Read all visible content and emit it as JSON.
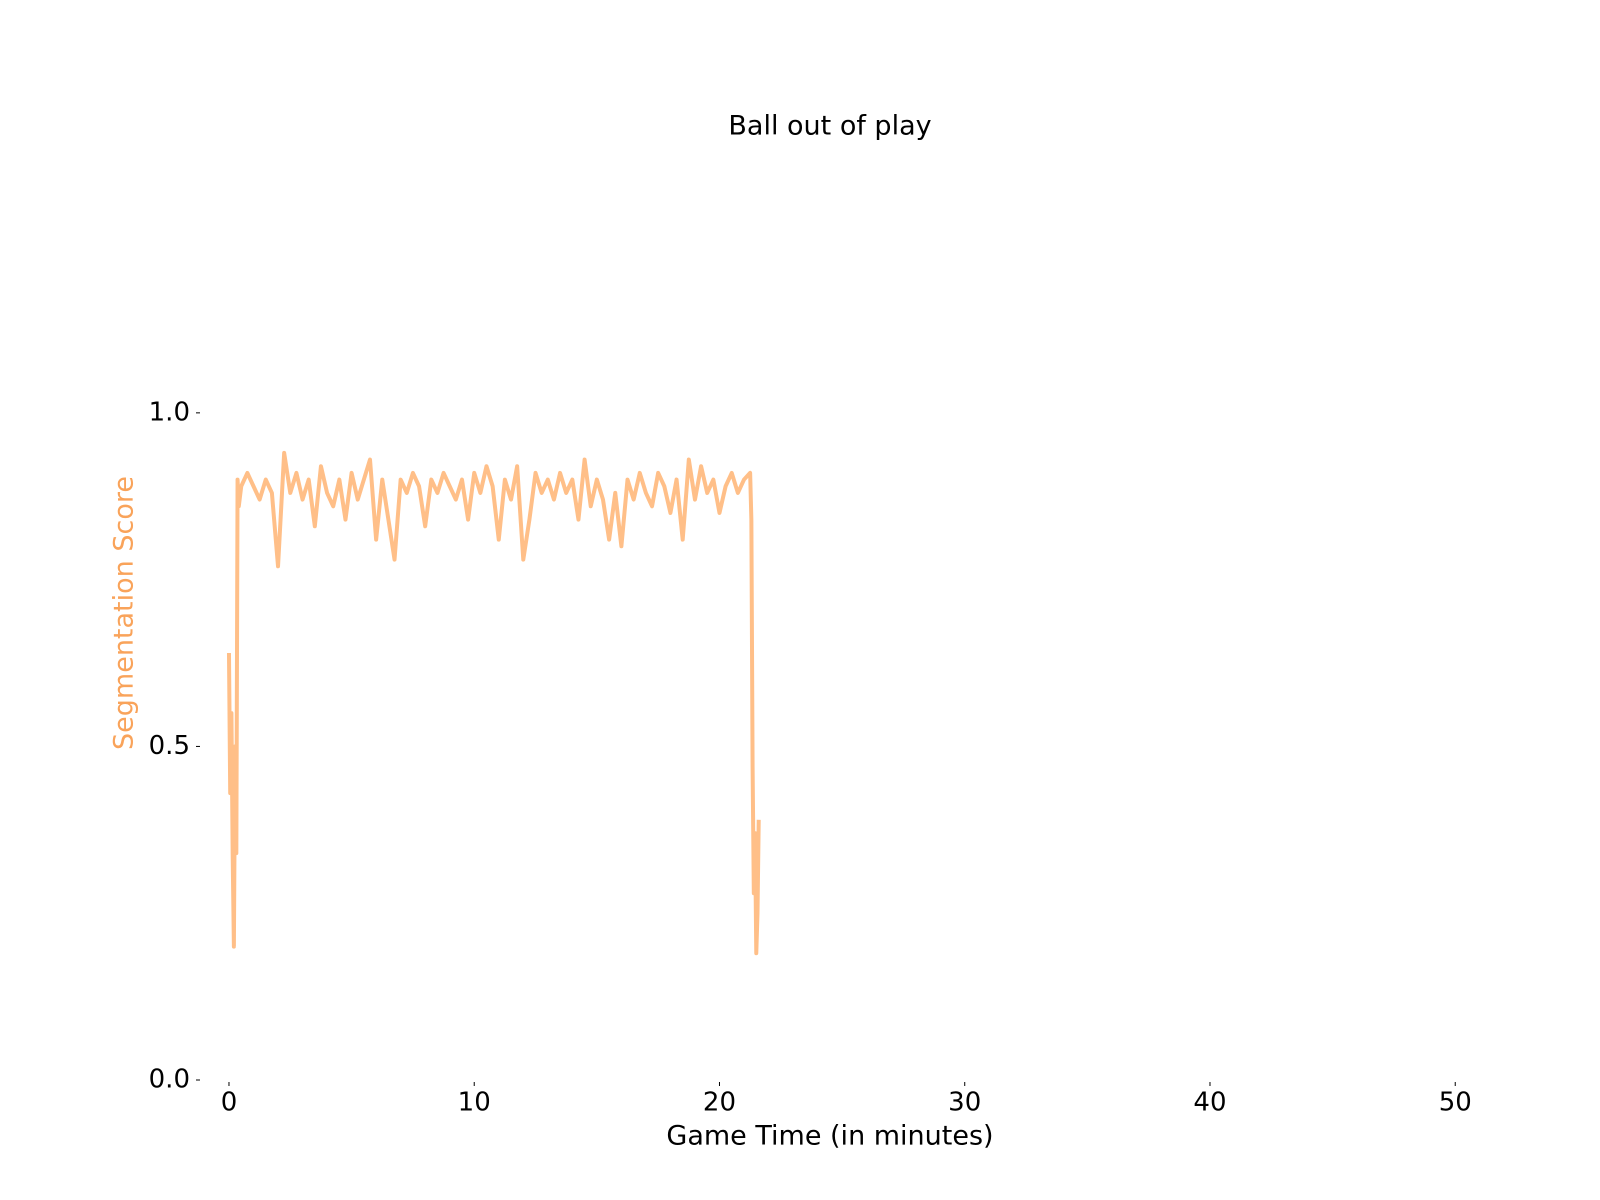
{
  "chart_data": {
    "type": "line",
    "title": "Ball out of play",
    "xlabel": "Game Time (in minutes)",
    "ylabel": "Segmentation Score",
    "ylabel_color": "#f9a35a",
    "xlim": [
      -1.1,
      52.6
    ],
    "xticks": [
      0,
      10,
      20,
      30,
      40,
      50
    ],
    "ylim": [
      0,
      1.4
    ],
    "yticks": [
      {
        "value": 0,
        "label": "0.0"
      },
      {
        "value": 0.5,
        "label": "0.5"
      },
      {
        "value": 1,
        "label": "1.0"
      }
    ],
    "grid": false,
    "x": [
      0,
      0.05,
      0.1,
      0.15,
      0.2,
      0.25,
      0.3,
      0.35,
      0.4,
      0.5,
      0.75,
      1.0,
      1.25,
      1.5,
      1.75,
      2.0,
      2.25,
      2.5,
      2.75,
      3.0,
      3.25,
      3.5,
      3.75,
      4.0,
      4.25,
      4.5,
      4.75,
      5.0,
      5.25,
      5.5,
      5.75,
      6.0,
      6.25,
      6.5,
      6.75,
      7.0,
      7.25,
      7.5,
      7.75,
      8.0,
      8.25,
      8.5,
      8.75,
      9.0,
      9.25,
      9.5,
      9.75,
      10.0,
      10.25,
      10.5,
      10.75,
      11.0,
      11.25,
      11.5,
      11.75,
      12.0,
      12.25,
      12.5,
      12.75,
      13.0,
      13.25,
      13.5,
      13.75,
      14.0,
      14.25,
      14.5,
      14.75,
      15.0,
      15.25,
      15.5,
      15.75,
      16.0,
      16.25,
      16.5,
      16.75,
      17.0,
      17.25,
      17.5,
      17.75,
      18.0,
      18.25,
      18.5,
      18.75,
      19.0,
      19.25,
      19.5,
      19.75,
      20.0,
      20.25,
      20.5,
      20.75,
      21.0,
      21.25,
      21.3,
      21.35,
      21.4,
      21.45,
      21.5,
      21.55,
      21.6
    ],
    "series": [
      {
        "name": "Segmentation Score",
        "color": "#ffbf88",
        "values": [
          0.64,
          0.43,
          0.55,
          0.34,
          0.2,
          0.5,
          0.34,
          0.9,
          0.86,
          0.89,
          0.91,
          0.89,
          0.87,
          0.9,
          0.88,
          0.77,
          0.94,
          0.88,
          0.91,
          0.87,
          0.9,
          0.83,
          0.92,
          0.88,
          0.86,
          0.9,
          0.84,
          0.91,
          0.87,
          0.9,
          0.93,
          0.81,
          0.9,
          0.84,
          0.78,
          0.9,
          0.88,
          0.91,
          0.89,
          0.83,
          0.9,
          0.88,
          0.91,
          0.89,
          0.87,
          0.9,
          0.84,
          0.91,
          0.88,
          0.92,
          0.89,
          0.81,
          0.9,
          0.87,
          0.92,
          0.78,
          0.84,
          0.91,
          0.88,
          0.9,
          0.87,
          0.91,
          0.88,
          0.9,
          0.84,
          0.93,
          0.86,
          0.9,
          0.87,
          0.81,
          0.88,
          0.8,
          0.9,
          0.87,
          0.91,
          0.88,
          0.86,
          0.91,
          0.89,
          0.85,
          0.9,
          0.81,
          0.93,
          0.87,
          0.92,
          0.88,
          0.9,
          0.85,
          0.89,
          0.91,
          0.88,
          0.9,
          0.91,
          0.84,
          0.47,
          0.28,
          0.37,
          0.19,
          0.25,
          0.39
        ]
      }
    ]
  }
}
